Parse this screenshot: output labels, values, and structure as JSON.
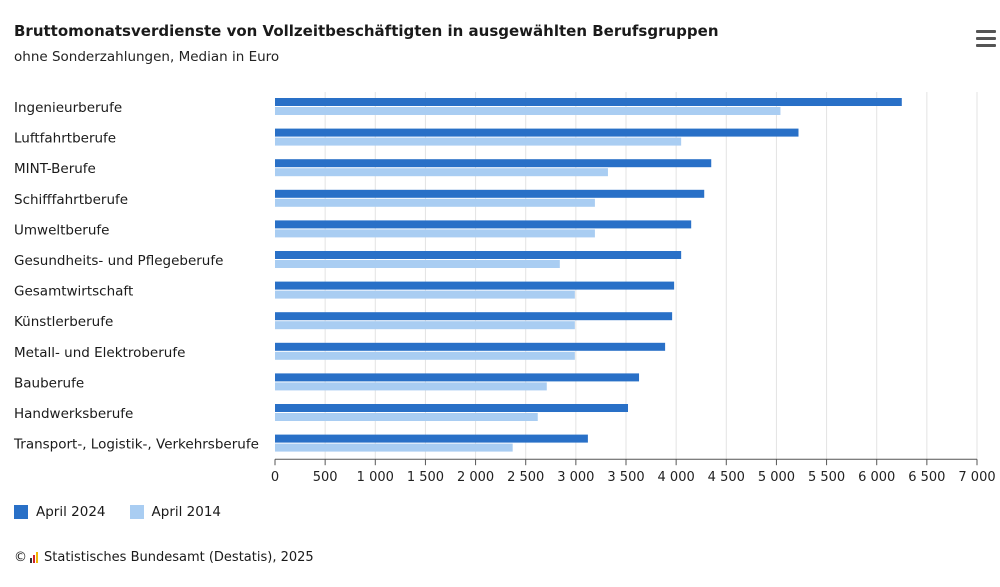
{
  "header": {
    "title": "Bruttomonatsverdienste von Vollzeitbeschäftigten in ausgewählten Berufsgruppen",
    "subtitle": "ohne Sonderzahlungen, Median in Euro"
  },
  "menu_icon": "hamburger-menu-icon",
  "footer": {
    "copyright_symbol": "©",
    "text": "Statistisches Bundesamt (Destatis), 2025"
  },
  "colors": {
    "april_2024": "#2970c7",
    "april_2014": "#a9cdf2",
    "grid": "#e3e3e3",
    "axis": "#555555"
  },
  "chart_data": {
    "type": "bar",
    "orientation": "horizontal",
    "categories": [
      "Ingenieurberufe",
      "Luftfahrtberufe",
      "MINT-Berufe",
      "Schifffahrtberufe",
      "Umweltberufe",
      "Gesundheits- und Pflegeberufe",
      "Gesamtwirtschaft",
      "Künstlerberufe",
      "Metall- und Elektroberufe",
      "Bauberufe",
      "Handwerksberufe",
      "Transport-, Logistik-, Verkehrsberufe"
    ],
    "series": [
      {
        "name": "April 2024",
        "values": [
          6250,
          5220,
          4350,
          4280,
          4150,
          4050,
          3980,
          3960,
          3890,
          3630,
          3520,
          3120
        ]
      },
      {
        "name": "April 2014",
        "values": [
          5040,
          4050,
          3320,
          3190,
          3190,
          2840,
          2990,
          2990,
          2990,
          2710,
          2620,
          2370
        ]
      }
    ],
    "xlim": [
      0,
      7000
    ],
    "ticks": [
      "0",
      "500",
      "1 000",
      "1 500",
      "2 000",
      "2 500",
      "3 000",
      "3 500",
      "4 000",
      "4 500",
      "5 000",
      "5 500",
      "6 000",
      "6 500",
      "7 000"
    ],
    "grid": true,
    "legend_position": "bottom-left"
  }
}
